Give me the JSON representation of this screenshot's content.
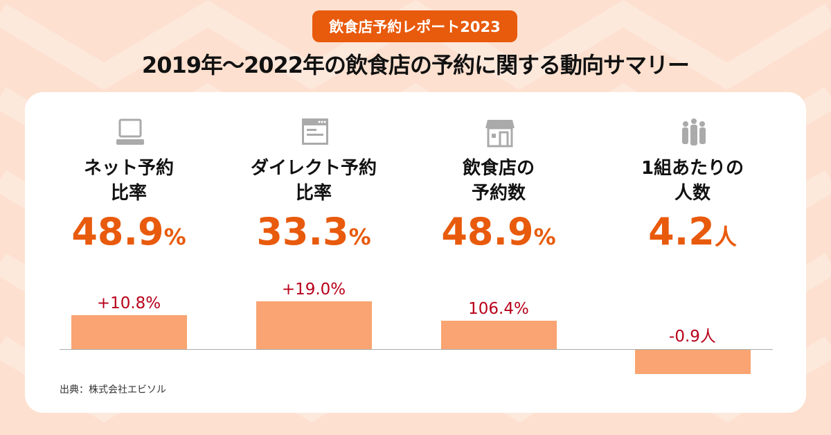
{
  "badge": "飲食店予約レポート2023",
  "title": "2019年〜2022年の飲食店の予約に関する動向サマリー",
  "colors": {
    "accent": "#e85a0c",
    "bar": "#f9a472",
    "change_label": "#b8001a",
    "background": "#fde0cf"
  },
  "metrics": [
    {
      "icon": "laptop-icon",
      "label1": "ネット予約",
      "label2": "比率",
      "value": "48.9",
      "unit": "%",
      "change": "+10.8%"
    },
    {
      "icon": "browser-window-icon",
      "label1": "ダイレクト予約",
      "label2": "比率",
      "value": "33.3",
      "unit": "%",
      "change": "+19.0%"
    },
    {
      "icon": "storefront-icon",
      "label1": "飲食店の",
      "label2": "予約数",
      "value": "48.9",
      "unit": "%",
      "change": "106.4%"
    },
    {
      "icon": "people-group-icon",
      "label1": "1組あたりの",
      "label2": "人数",
      "value": "4.2",
      "unit": "人",
      "change": "-0.9人"
    }
  ],
  "chart_data": {
    "type": "bar",
    "categories": [
      "ネット予約比率",
      "ダイレクト予約比率",
      "飲食店の予約数",
      "1組あたりの人数"
    ],
    "values": [
      10.8,
      19.0,
      106.4,
      -0.9
    ],
    "data_labels": [
      "+10.8%",
      "+19.0%",
      "106.4%",
      "-0.9人"
    ]
  },
  "source": "出典：株式会社エビソル"
}
